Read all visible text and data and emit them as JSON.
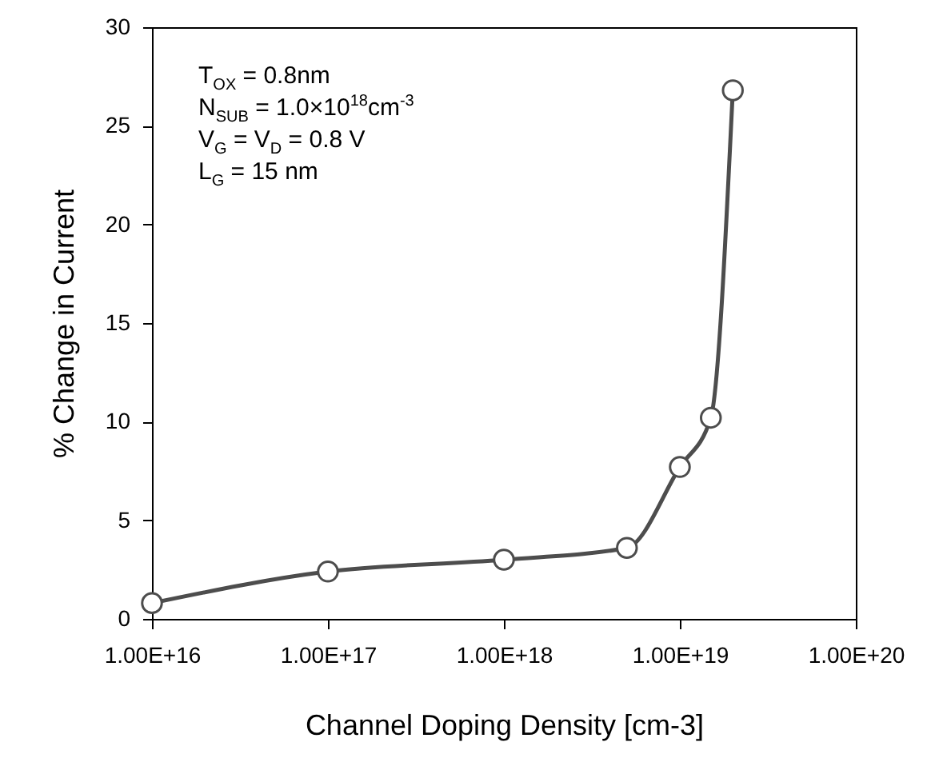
{
  "chart_data": {
    "type": "line",
    "xlabel": "Channel Doping Density [cm-3]",
    "ylabel": "% Change in Current",
    "x": [
      1e+16,
      1e+17,
      1e+18,
      5e+18,
      1e+19,
      1.5e+19,
      2e+19
    ],
    "series": [
      {
        "color": "#4d4d4d",
        "values": [
          0.8,
          2.4,
          3.0,
          3.6,
          7.7,
          10.2,
          26.8
        ]
      }
    ],
    "log": "x",
    "xlim": [
      1e+16,
      1e+20
    ],
    "xticks": [
      {
        "value": 1e+16,
        "label": "1.00E+16"
      },
      {
        "value": 1e+17,
        "label": "1.00E+17"
      },
      {
        "value": 1e+18,
        "label": "1.00E+18"
      },
      {
        "value": 1e+19,
        "label": "1.00E+19"
      },
      {
        "value": 1e+20,
        "label": "1.00E+20"
      }
    ],
    "ylim": [
      0,
      30
    ],
    "yticks": [
      0,
      5,
      10,
      15,
      20,
      25,
      30
    ],
    "marker": "circle",
    "line_style": "solid",
    "annotations": [
      "T$_{OX}$ = 0.8nm",
      "N$_{SUB}$ = 1.0×10$^{18}$cm$^{-3}$",
      "V$_{G}$ = V$_{D}$ = 0.8 V",
      "L$_{G}$ = 15 nm"
    ]
  }
}
